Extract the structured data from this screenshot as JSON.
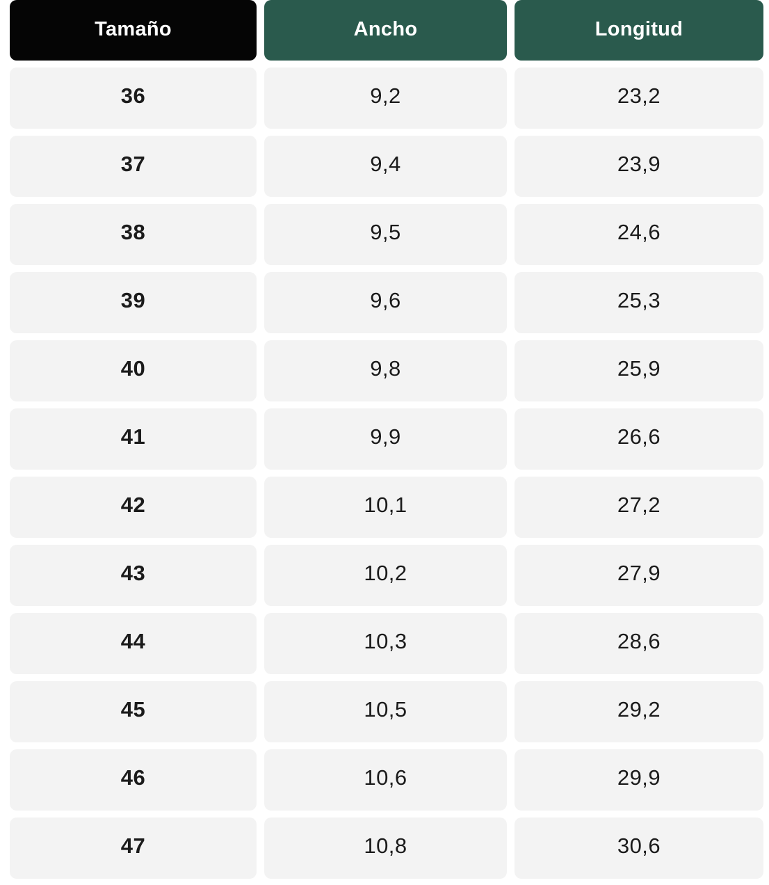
{
  "chart_data": {
    "type": "table",
    "title": "",
    "columns": [
      "Tamaño",
      "Ancho",
      "Longitud"
    ],
    "column_keys": [
      "size",
      "width",
      "length"
    ],
    "rows": [
      [
        "36",
        "9,2",
        "23,2"
      ],
      [
        "37",
        "9,4",
        "23,9"
      ],
      [
        "38",
        "9,5",
        "24,6"
      ],
      [
        "39",
        "9,6",
        "25,3"
      ],
      [
        "40",
        "9,8",
        "25,9"
      ],
      [
        "41",
        "9,9",
        "26,6"
      ],
      [
        "42",
        "10,1",
        "27,2"
      ],
      [
        "43",
        "10,2",
        "27,9"
      ],
      [
        "44",
        "10,3",
        "28,6"
      ],
      [
        "45",
        "10,5",
        "29,2"
      ],
      [
        "46",
        "10,6",
        "29,9"
      ],
      [
        "47",
        "10,8",
        "30,6"
      ]
    ],
    "grid": false,
    "legend_position": "none"
  },
  "colors": {
    "size_header_bg": "#050505",
    "measure_header_bg": "#2A5A4D",
    "row_bg": "#F3F3F3",
    "header_text": "#FFFFFF",
    "cell_text": "#1B1B1B"
  }
}
